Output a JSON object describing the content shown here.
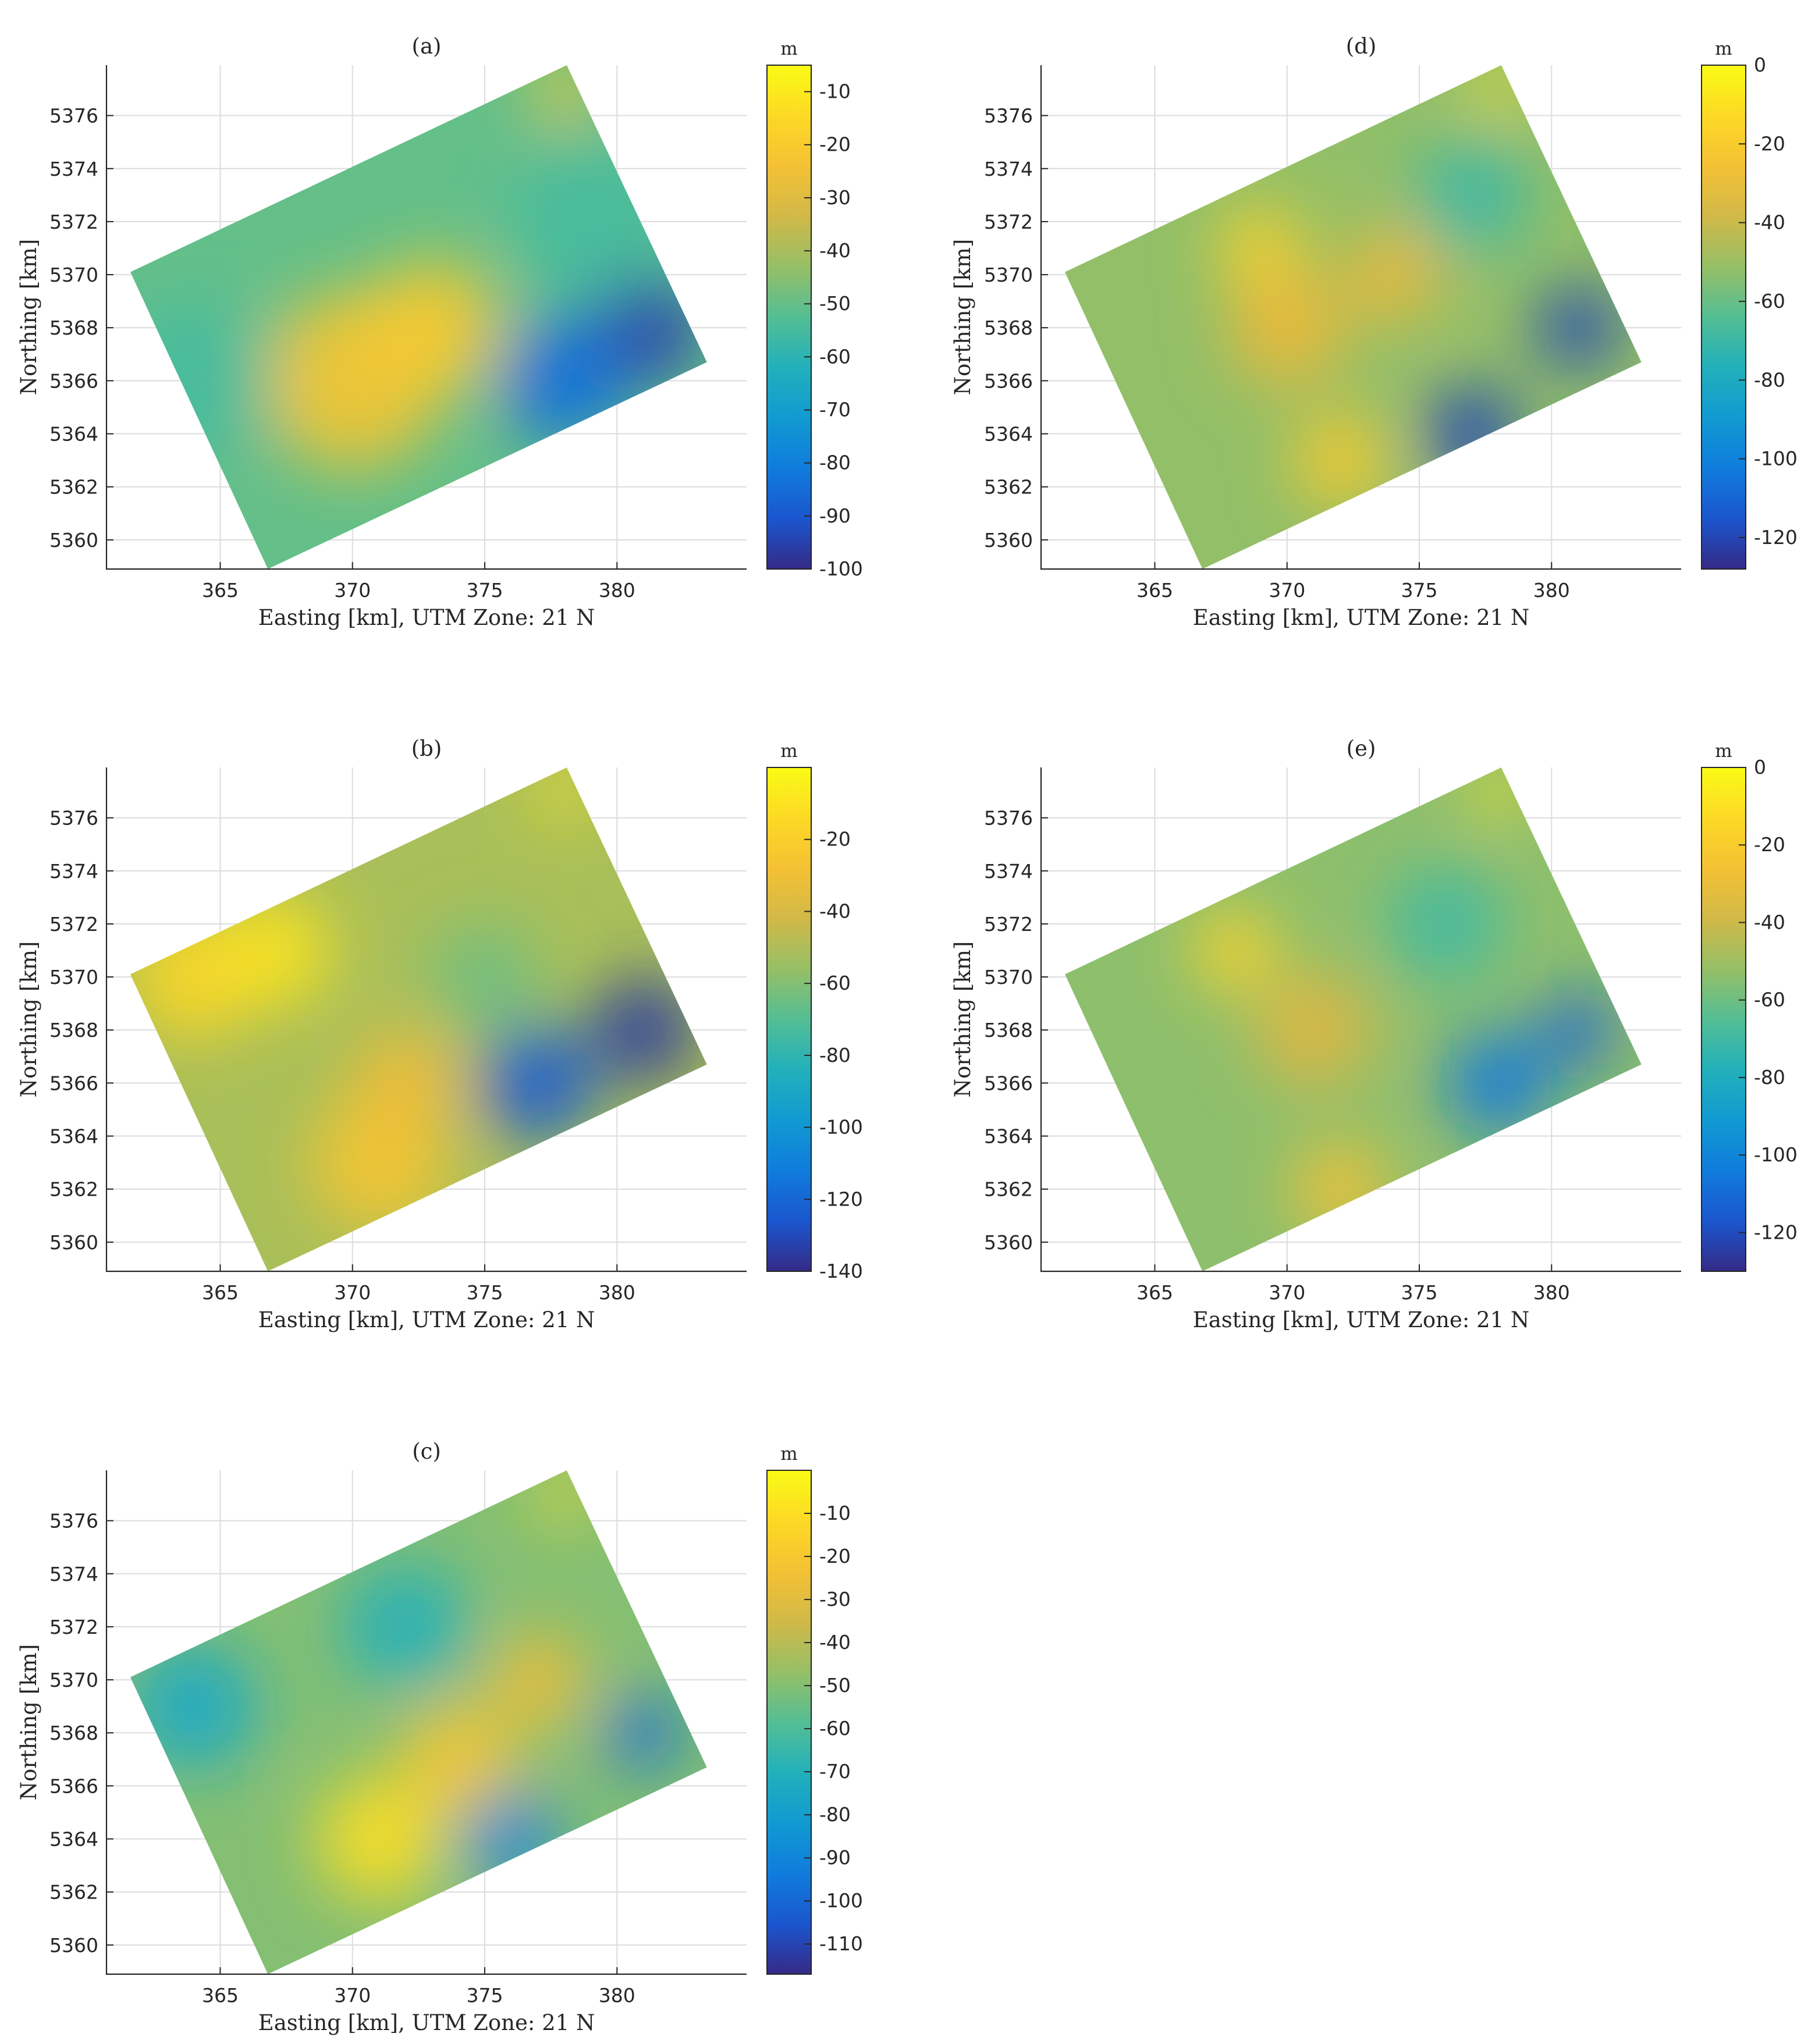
{
  "chart_data": [
    {
      "id": "a",
      "type": "heatmap",
      "title": "(a)",
      "xlabel": "Easting [km], UTM Zone: 21 N",
      "ylabel": "Northing [km]",
      "xticks": [
        365,
        370,
        375,
        380
      ],
      "yticks": [
        5360,
        5362,
        5364,
        5366,
        5368,
        5370,
        5372,
        5374,
        5376
      ],
      "xlim": [
        360.7,
        384.9
      ],
      "ylim": [
        5358.9,
        5377.9
      ],
      "colorbar": {
        "unit": "m",
        "ticks": [
          -10,
          -20,
          -30,
          -40,
          -50,
          -60,
          -70,
          -80,
          -90,
          -100
        ],
        "range": [
          -5,
          -100
        ]
      },
      "grid": true,
      "features": [
        {
          "x": 370,
          "y": 5366,
          "value": -22,
          "r": 3.4
        },
        {
          "x": 373,
          "y": 5368,
          "value": -20,
          "r": 2.6
        },
        {
          "x": 381,
          "y": 5368,
          "value": -95,
          "r": 2.2
        },
        {
          "x": 378,
          "y": 5366,
          "value": -85,
          "r": 2.4
        },
        {
          "x": 379,
          "y": 5372,
          "value": -55,
          "r": 3.0
        },
        {
          "x": 364,
          "y": 5366,
          "value": -55,
          "r": 3.0
        },
        {
          "x": 378,
          "y": 5377,
          "value": -20,
          "r": 1.2
        }
      ]
    },
    {
      "id": "b",
      "type": "heatmap",
      "title": "(b)",
      "xlabel": "Easting [km], UTM Zone: 21 N",
      "ylabel": "Northing [km]",
      "xticks": [
        365,
        370,
        375,
        380
      ],
      "yticks": [
        5360,
        5362,
        5364,
        5366,
        5368,
        5370,
        5372,
        5374,
        5376
      ],
      "xlim": [
        360.7,
        384.9
      ],
      "ylim": [
        5358.9,
        5377.9
      ],
      "colorbar": {
        "unit": "m",
        "ticks": [
          -20,
          -40,
          -60,
          -80,
          -100,
          -120,
          -140
        ],
        "range": [
          0,
          -140
        ]
      },
      "grid": true,
      "features": [
        {
          "x": 364,
          "y": 5370,
          "value": -15,
          "r": 2.4
        },
        {
          "x": 367,
          "y": 5371,
          "value": -10,
          "r": 2.2
        },
        {
          "x": 371,
          "y": 5363,
          "value": -25,
          "r": 2.6
        },
        {
          "x": 372,
          "y": 5366,
          "value": -30,
          "r": 2.0
        },
        {
          "x": 381,
          "y": 5368,
          "value": -135,
          "r": 2.0
        },
        {
          "x": 377,
          "y": 5366,
          "value": -125,
          "r": 2.2
        },
        {
          "x": 375,
          "y": 5370,
          "value": -65,
          "r": 2.0
        },
        {
          "x": 378,
          "y": 5377,
          "value": -10,
          "r": 1.0
        }
      ]
    },
    {
      "id": "c",
      "type": "heatmap",
      "title": "(c)",
      "xlabel": "Easting [km], UTM Zone: 21 N",
      "ylabel": "Northing [km]",
      "xticks": [
        365,
        370,
        375,
        380
      ],
      "yticks": [
        5360,
        5362,
        5364,
        5366,
        5368,
        5370,
        5372,
        5374,
        5376
      ],
      "xlim": [
        360.7,
        384.9
      ],
      "ylim": [
        5358.9,
        5377.9
      ],
      "colorbar": {
        "unit": "m",
        "ticks": [
          -10,
          -20,
          -30,
          -40,
          -50,
          -60,
          -70,
          -80,
          -90,
          -100,
          -110
        ],
        "range": [
          0,
          -117
        ]
      },
      "grid": true,
      "features": [
        {
          "x": 371,
          "y": 5364,
          "value": -10,
          "r": 2.4
        },
        {
          "x": 374,
          "y": 5367,
          "value": -20,
          "r": 2.2
        },
        {
          "x": 377,
          "y": 5370,
          "value": -25,
          "r": 1.8
        },
        {
          "x": 364,
          "y": 5369,
          "value": -75,
          "r": 2.4
        },
        {
          "x": 372,
          "y": 5372,
          "value": -70,
          "r": 2.4
        },
        {
          "x": 376,
          "y": 5364,
          "value": -90,
          "r": 1.8
        },
        {
          "x": 381,
          "y": 5368,
          "value": -100,
          "r": 1.4
        },
        {
          "x": 378,
          "y": 5377,
          "value": -10,
          "r": 1.0
        }
      ]
    },
    {
      "id": "d",
      "type": "heatmap",
      "title": "(d)",
      "xlabel": "Easting [km], UTM Zone: 21 N",
      "ylabel": "Northing [km]",
      "xticks": [
        365,
        370,
        375,
        380
      ],
      "yticks": [
        5360,
        5362,
        5364,
        5366,
        5368,
        5370,
        5372,
        5374,
        5376
      ],
      "xlim": [
        360.7,
        384.9
      ],
      "ylim": [
        5358.9,
        5377.9
      ],
      "colorbar": {
        "unit": "m",
        "ticks": [
          0,
          -20,
          -40,
          -60,
          -80,
          -100,
          -120
        ],
        "range": [
          0,
          -128
        ]
      },
      "grid": true,
      "features": [
        {
          "x": 369,
          "y": 5371,
          "value": -15,
          "r": 1.6
        },
        {
          "x": 372,
          "y": 5363,
          "value": -20,
          "r": 1.8
        },
        {
          "x": 370,
          "y": 5368,
          "value": -30,
          "r": 2.2
        },
        {
          "x": 374,
          "y": 5370,
          "value": -30,
          "r": 1.8
        },
        {
          "x": 377,
          "y": 5364,
          "value": -120,
          "r": 1.8
        },
        {
          "x": 381,
          "y": 5368,
          "value": -120,
          "r": 1.6
        },
        {
          "x": 377,
          "y": 5373,
          "value": -70,
          "r": 2.2
        },
        {
          "x": 378,
          "y": 5377,
          "value": -10,
          "r": 1.0
        }
      ]
    },
    {
      "id": "e",
      "type": "heatmap",
      "title": "(e)",
      "xlabel": "Easting [km], UTM Zone: 21 N",
      "ylabel": "Northing [km]",
      "xticks": [
        365,
        370,
        375,
        380
      ],
      "yticks": [
        5360,
        5362,
        5364,
        5366,
        5368,
        5370,
        5372,
        5374,
        5376
      ],
      "xlim": [
        360.7,
        384.9
      ],
      "ylim": [
        5358.9,
        5377.9
      ],
      "colorbar": {
        "unit": "m",
        "ticks": [
          0,
          -20,
          -40,
          -60,
          -80,
          -100,
          -120
        ],
        "range": [
          0,
          -130
        ]
      },
      "grid": true,
      "features": [
        {
          "x": 368,
          "y": 5371,
          "value": -15,
          "r": 1.6
        },
        {
          "x": 372,
          "y": 5362,
          "value": -25,
          "r": 1.8
        },
        {
          "x": 371,
          "y": 5368,
          "value": -35,
          "r": 2.2
        },
        {
          "x": 378,
          "y": 5366,
          "value": -105,
          "r": 2.0
        },
        {
          "x": 381,
          "y": 5368,
          "value": -115,
          "r": 1.4
        },
        {
          "x": 376,
          "y": 5372,
          "value": -70,
          "r": 2.2
        },
        {
          "x": 378,
          "y": 5377,
          "value": -10,
          "r": 1.0
        }
      ]
    }
  ]
}
